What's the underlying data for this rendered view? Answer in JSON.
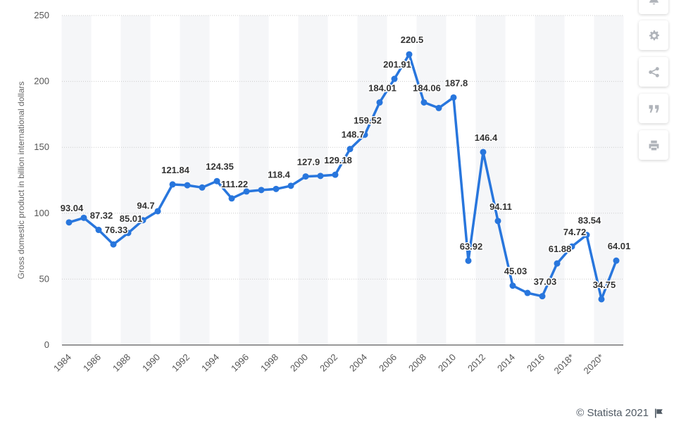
{
  "chart_data": {
    "type": "line",
    "title": "",
    "xlabel": "",
    "ylabel": "Gross domestic product in billion international dollars",
    "ylim": [
      0,
      250
    ],
    "yticks": [
      0,
      50,
      100,
      150,
      200,
      250
    ],
    "grid": true,
    "legend": "none",
    "x": [
      "1984",
      "1985",
      "1986",
      "1987",
      "1988",
      "1989",
      "1990",
      "1991",
      "1992",
      "1993",
      "1994",
      "1995",
      "1996",
      "1997",
      "1998",
      "1999",
      "2000",
      "2001",
      "2002",
      "2003",
      "2004",
      "2005",
      "2006",
      "2007",
      "2008",
      "2009",
      "2010",
      "2011",
      "2012",
      "2013",
      "2014",
      "2015",
      "2016",
      "2017",
      "2018*",
      "2019*",
      "2020*",
      "2021*"
    ],
    "xtick_labels": [
      "1984",
      "1986",
      "1988",
      "1990",
      "1992",
      "1994",
      "1996",
      "1998",
      "2000",
      "2002",
      "2004",
      "2006",
      "2008",
      "2010",
      "2012",
      "2014",
      "2016",
      "2018*",
      "2020*"
    ],
    "series": [
      {
        "values": [
          93.04,
          96.5,
          87.32,
          76.33,
          85.01,
          94.7,
          101.5,
          121.84,
          121.2,
          119.5,
          124.35,
          111.22,
          116.5,
          117.6,
          118.4,
          120.8,
          127.9,
          128.3,
          129.18,
          148.7,
          159.52,
          184.01,
          201.91,
          220.5,
          184.06,
          179.8,
          187.8,
          63.92,
          146.4,
          94.11,
          45.03,
          39.5,
          37.03,
          61.88,
          74.72,
          83.54,
          34.75,
          64.01
        ],
        "labels": [
          "93.04",
          "",
          "87.32",
          "76.33",
          "85.01",
          "94.7",
          "",
          "121.84",
          "",
          "",
          "124.35",
          "111.22",
          "",
          "",
          "118.4",
          "",
          "127.9",
          "",
          "129.18",
          "148.7",
          "159.52",
          "184.01",
          "201.91",
          "220.5",
          "184.06",
          "",
          "187.8",
          "63.92",
          "146.4",
          "94.11",
          "45.03",
          "",
          "37.03",
          "61.88",
          "74.72",
          "83.54",
          "34.75",
          "64.01"
        ]
      }
    ],
    "colors": {
      "line": "#2876dd",
      "band": "#f5f6f8",
      "grid": "#cccccc",
      "axis": "#333333"
    }
  },
  "toolbar": {
    "buttons": [
      {
        "name": "notification-bell-button",
        "icon": "bell-icon"
      },
      {
        "name": "settings-button",
        "icon": "gear-icon"
      },
      {
        "name": "share-button",
        "icon": "share-icon"
      },
      {
        "name": "cite-button",
        "icon": "quote-icon"
      },
      {
        "name": "print-button",
        "icon": "print-icon"
      }
    ]
  },
  "footer": {
    "credit": "© Statista 2021"
  }
}
